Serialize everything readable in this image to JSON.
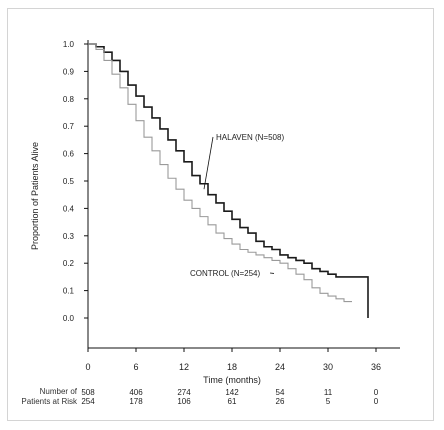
{
  "chart_data": {
    "type": "line",
    "xlabel": "Time (months)",
    "ylabel": "Proportion of Patients Alive",
    "xlim": [
      0,
      36
    ],
    "ylim": [
      0.0,
      1.0
    ],
    "xticks": [
      "0",
      "6",
      "12",
      "18",
      "24",
      "30",
      "36"
    ],
    "yticks": [
      "0.0",
      "0.1",
      "0.2",
      "0.3",
      "0.4",
      "0.5",
      "0.6",
      "0.7",
      "0.8",
      "0.9",
      "1.0"
    ],
    "grid": false,
    "series": [
      {
        "name": "HALAVEN (N=508)",
        "color": "#1a1a1a",
        "style": "step",
        "x": [
          0,
          1,
          2,
          3,
          4,
          5,
          6,
          7,
          8,
          9,
          10,
          11,
          12,
          13,
          14,
          15,
          16,
          17,
          18,
          19,
          20,
          21,
          22,
          23,
          24,
          25,
          26,
          27,
          28,
          29,
          30,
          31,
          32,
          33,
          34,
          35
        ],
        "y": [
          1.0,
          0.99,
          0.97,
          0.94,
          0.9,
          0.85,
          0.81,
          0.77,
          0.73,
          0.69,
          0.65,
          0.61,
          0.57,
          0.52,
          0.49,
          0.45,
          0.42,
          0.39,
          0.36,
          0.33,
          0.31,
          0.28,
          0.26,
          0.25,
          0.23,
          0.22,
          0.21,
          0.2,
          0.18,
          0.17,
          0.16,
          0.15,
          0.15,
          0.15,
          0.15,
          0.0
        ]
      },
      {
        "name": "CONTROL (N=254)",
        "color": "#9a9a9a",
        "style": "step",
        "x": [
          0,
          1,
          2,
          3,
          4,
          5,
          6,
          7,
          8,
          9,
          10,
          11,
          12,
          13,
          14,
          15,
          16,
          17,
          18,
          19,
          20,
          21,
          22,
          23,
          24,
          25,
          26,
          27,
          28,
          29,
          30,
          31,
          32,
          33
        ],
        "y": [
          1.0,
          0.98,
          0.94,
          0.89,
          0.84,
          0.78,
          0.72,
          0.66,
          0.61,
          0.56,
          0.51,
          0.47,
          0.43,
          0.4,
          0.37,
          0.34,
          0.31,
          0.29,
          0.27,
          0.25,
          0.24,
          0.23,
          0.22,
          0.21,
          0.2,
          0.18,
          0.16,
          0.14,
          0.11,
          0.09,
          0.08,
          0.07,
          0.06,
          0.06
        ]
      }
    ],
    "annotations": [
      {
        "text": "HALAVEN (N=508)",
        "series_index": 0,
        "at_x": 14.5,
        "at_y": 0.47
      },
      {
        "text": "CONTROL (N=254)",
        "series_index": 1,
        "at_x": 22.0,
        "at_y": 0.17
      }
    ],
    "risk_table": {
      "title_line1": "Number of",
      "title_line2": "Patients at Risk",
      "times": [
        0,
        6,
        12,
        18,
        24,
        30,
        36
      ],
      "rows": [
        {
          "name": "HALAVEN",
          "values": [
            "508",
            "406",
            "274",
            "142",
            "54",
            "11",
            "0"
          ]
        },
        {
          "name": "CONTROL",
          "values": [
            "254",
            "178",
            "106",
            "61",
            "26",
            "5",
            "0"
          ]
        }
      ]
    }
  }
}
